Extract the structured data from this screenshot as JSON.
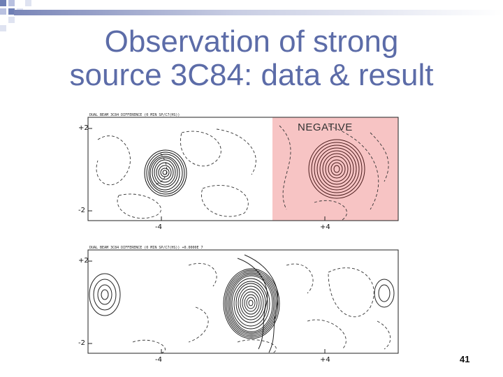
{
  "slide": {
    "title_line1": "Observation of strong",
    "title_line2": "source 3C84: data & result",
    "page_number": "41"
  },
  "top_panel": {
    "header_text": "DUAL BEAM 3C84 DIFFERENCE (0 MIN SP/C7(HS))",
    "negative_label": "NEGATIVE",
    "y_ticks": [
      "+2",
      "-2"
    ],
    "x_ticks": [
      "-4",
      "+4"
    ]
  },
  "bottom_panel": {
    "header_text": "DUAL BEAM 3C84 DIFFERENCE (0 MIN SP/C7(HS))   +0.0000E  7",
    "y_ticks": [
      "+2",
      "-2"
    ],
    "x_ticks": [
      "-4",
      "+4"
    ]
  },
  "colors": {
    "title": "#5c6ca8",
    "highlight": "#f7c4c4",
    "accent_squares": "#6f7fb5"
  }
}
